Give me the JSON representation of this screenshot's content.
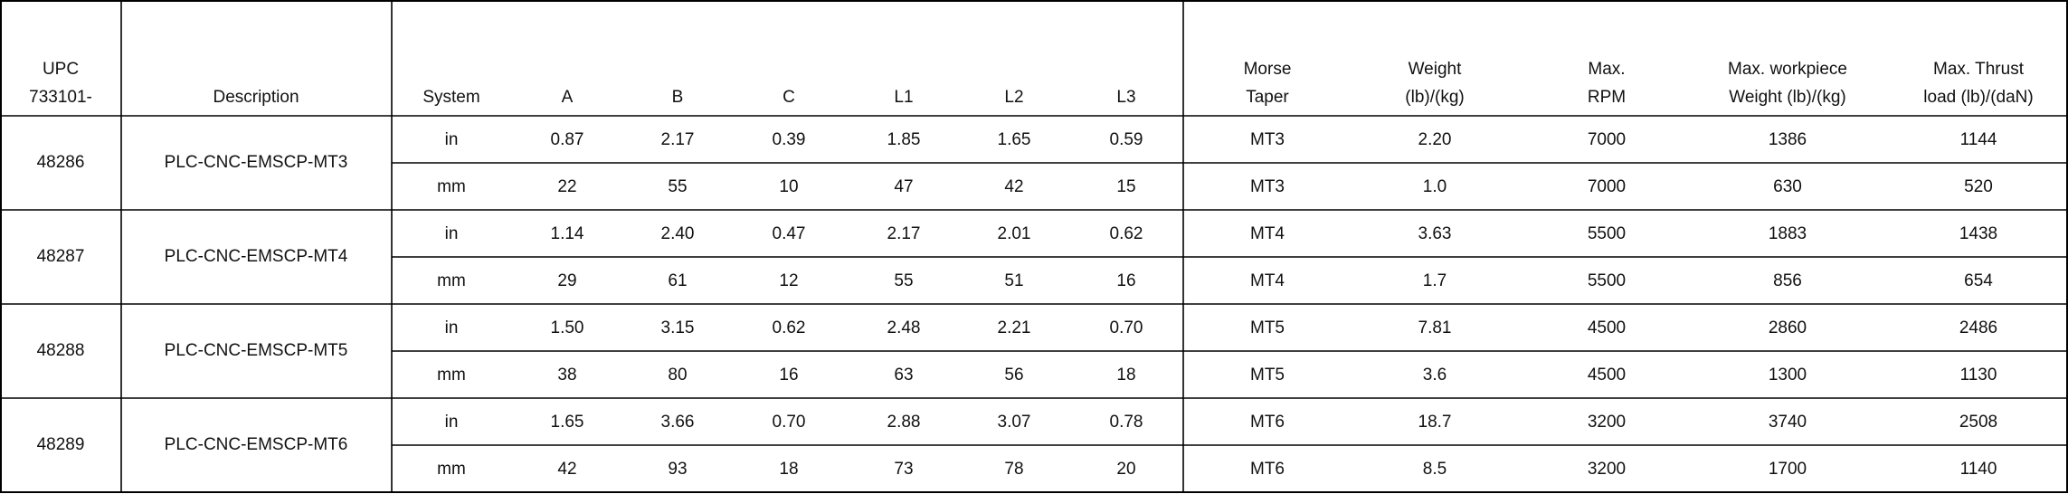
{
  "table": {
    "columns": [
      [
        "UPC",
        "733101-"
      ],
      [
        "Description"
      ],
      [
        "System"
      ],
      [
        "A"
      ],
      [
        "B"
      ],
      [
        "C"
      ],
      [
        "L1"
      ],
      [
        "L2"
      ],
      [
        "L3"
      ],
      [
        "Morse",
        "Taper"
      ],
      [
        "Weight",
        "(lb)/(kg)"
      ],
      [
        "Max.",
        "RPM"
      ],
      [
        "Max. workpiece",
        "Weight (lb)/(kg)"
      ],
      [
        "Max. Thrust",
        "load (lb)/(daN)"
      ]
    ],
    "groups": [
      {
        "upc": "48286",
        "description": "PLC-CNC-EMSCP-MT3",
        "rows": [
          [
            "in",
            "0.87",
            "2.17",
            "0.39",
            "1.85",
            "1.65",
            "0.59",
            "MT3",
            "2.20",
            "7000",
            "1386",
            "1144"
          ],
          [
            "mm",
            "22",
            "55",
            "10",
            "47",
            "42",
            "15",
            "MT3",
            "1.0",
            "7000",
            "630",
            "520"
          ]
        ]
      },
      {
        "upc": "48287",
        "description": "PLC-CNC-EMSCP-MT4",
        "rows": [
          [
            "in",
            "1.14",
            "2.40",
            "0.47",
            "2.17",
            "2.01",
            "0.62",
            "MT4",
            "3.63",
            "5500",
            "1883",
            "1438"
          ],
          [
            "mm",
            "29",
            "61",
            "12",
            "55",
            "51",
            "16",
            "MT4",
            "1.7",
            "5500",
            "856",
            "654"
          ]
        ]
      },
      {
        "upc": "48288",
        "description": "PLC-CNC-EMSCP-MT5",
        "rows": [
          [
            "in",
            "1.50",
            "3.15",
            "0.62",
            "2.48",
            "2.21",
            "0.70",
            "MT5",
            "7.81",
            "4500",
            "2860",
            "2486"
          ],
          [
            "mm",
            "38",
            "80",
            "16",
            "63",
            "56",
            "18",
            "MT5",
            "3.6",
            "4500",
            "1300",
            "1130"
          ]
        ]
      },
      {
        "upc": "48289",
        "description": "PLC-CNC-EMSCP-MT6",
        "rows": [
          [
            "in",
            "1.65",
            "3.66",
            "0.70",
            "2.88",
            "3.07",
            "0.78",
            "MT6",
            "18.7",
            "3200",
            "3740",
            "2508"
          ],
          [
            "mm",
            "42",
            "93",
            "18",
            "73",
            "78",
            "20",
            "MT6",
            "8.5",
            "3200",
            "1700",
            "1140"
          ]
        ]
      }
    ]
  }
}
